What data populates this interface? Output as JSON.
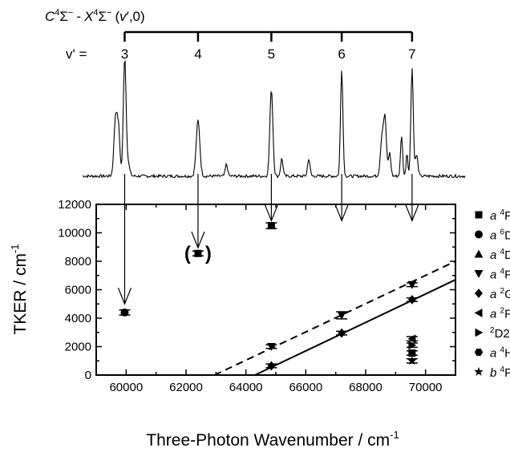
{
  "band_header": {
    "C": "C",
    "C_sup": "4",
    "C_sym": "Σ",
    "C_sym_sup": "−",
    "dash": "-",
    "X": "X",
    "X_sup": "4",
    "X_sym": "Σ",
    "X_sym_sup": "−",
    "paren_open": "(",
    "v": "v",
    "paren_rest": "′,0)"
  },
  "vibrational": {
    "prefix": "v' =",
    "levels": [
      "3",
      "4",
      "5",
      "6",
      "7"
    ],
    "wavenumbers": [
      59950,
      62400,
      64850,
      67200,
      69550
    ]
  },
  "chart_data": {
    "type": "scatter",
    "xlabel": "Three-Photon Wavenumber / cm",
    "xlabel_sup": "-1",
    "ylabel": "TKER / cm",
    "ylabel_sup": "-1",
    "xlim": [
      59000,
      71000
    ],
    "ylim": [
      0,
      12000
    ],
    "xticks": [
      60000,
      62000,
      64000,
      66000,
      68000,
      70000
    ],
    "yticks": [
      0,
      2000,
      4000,
      6000,
      8000,
      10000,
      12000
    ],
    "x_minor_step": 1000,
    "y_minor_step": 1000,
    "legend_position": "right",
    "legend": [
      {
        "key": "a4F",
        "marker": "square",
        "term": "a",
        "sup": "4",
        "letter": "F"
      },
      {
        "key": "a6D",
        "marker": "circle",
        "term": "a",
        "sup": "6",
        "letter": "D"
      },
      {
        "key": "a4D",
        "marker": "triangle-up",
        "term": "a",
        "sup": "4",
        "letter": "D"
      },
      {
        "key": "a4P",
        "marker": "triangle-down",
        "term": "a",
        "sup": "4",
        "letter": "P"
      },
      {
        "key": "a2G",
        "marker": "diamond",
        "term": "a",
        "sup": "2",
        "letter": "G"
      },
      {
        "key": "a2P",
        "marker": "triangle-left",
        "term": "a",
        "sup": "2",
        "letter": "P"
      },
      {
        "key": "2D2",
        "marker": "triangle-right",
        "term": "",
        "sup": "2",
        "letter": "D2"
      },
      {
        "key": "a4H",
        "marker": "hexagon",
        "term": "a",
        "sup": "4",
        "letter": "H"
      },
      {
        "key": "b4P",
        "marker": "star",
        "term": "b",
        "sup": "4",
        "letter": "P"
      }
    ],
    "points": [
      {
        "series": "a6D",
        "x": 59950,
        "y": 4400,
        "err": 180
      },
      {
        "series": "a4F",
        "x": 62400,
        "y": 8550,
        "err": 170,
        "bracketed": true
      },
      {
        "series": "a4F",
        "x": 64850,
        "y": 10500,
        "err": 200
      },
      {
        "series": "a4P",
        "x": 64850,
        "y": 2000,
        "err": 130
      },
      {
        "series": "a2G",
        "x": 64850,
        "y": 650,
        "err": 130
      },
      {
        "series": "a4P",
        "x": 67200,
        "y": 4200,
        "err": 250
      },
      {
        "series": "a2G",
        "x": 67200,
        "y": 2950,
        "err": 130
      },
      {
        "series": "a4P",
        "x": 69550,
        "y": 6350,
        "err": 130
      },
      {
        "series": "a2G",
        "x": 69550,
        "y": 5300,
        "err": 130
      },
      {
        "series": "a2P",
        "x": 69550,
        "y": 2550,
        "err": 150
      },
      {
        "series": "2D2",
        "x": 69550,
        "y": 2100,
        "err": 150
      },
      {
        "series": "a4F",
        "x": 69550,
        "y": 1550,
        "err": 150
      },
      {
        "series": "b4P",
        "x": 69550,
        "y": 1000,
        "err": 150
      }
    ],
    "fit_lines": [
      {
        "style": "solid",
        "x": [
          64300,
          71000
        ],
        "y": [
          0,
          6700
        ]
      },
      {
        "style": "dashed",
        "x": [
          62950,
          71000
        ],
        "y": [
          0,
          8000
        ]
      }
    ],
    "spectrum": {
      "baseline": 0.05,
      "peaks": [
        {
          "x": 59650,
          "h": 0.52,
          "w": 55
        },
        {
          "x": 59750,
          "h": 0.35,
          "w": 45
        },
        {
          "x": 59950,
          "h": 1.0,
          "w": 45
        },
        {
          "x": 60050,
          "h": 0.12,
          "w": 60
        },
        {
          "x": 62400,
          "h": 0.48,
          "w": 60
        },
        {
          "x": 63350,
          "h": 0.1,
          "w": 40
        },
        {
          "x": 64850,
          "h": 0.75,
          "w": 50
        },
        {
          "x": 65200,
          "h": 0.15,
          "w": 40
        },
        {
          "x": 66100,
          "h": 0.15,
          "w": 40
        },
        {
          "x": 67200,
          "h": 0.92,
          "w": 40
        },
        {
          "x": 68550,
          "h": 0.35,
          "w": 55
        },
        {
          "x": 68650,
          "h": 0.45,
          "w": 45
        },
        {
          "x": 68800,
          "h": 0.2,
          "w": 40
        },
        {
          "x": 69200,
          "h": 0.35,
          "w": 35
        },
        {
          "x": 69380,
          "h": 0.2,
          "w": 30
        },
        {
          "x": 69550,
          "h": 0.93,
          "w": 40
        },
        {
          "x": 69700,
          "h": 0.18,
          "w": 45
        }
      ]
    }
  }
}
